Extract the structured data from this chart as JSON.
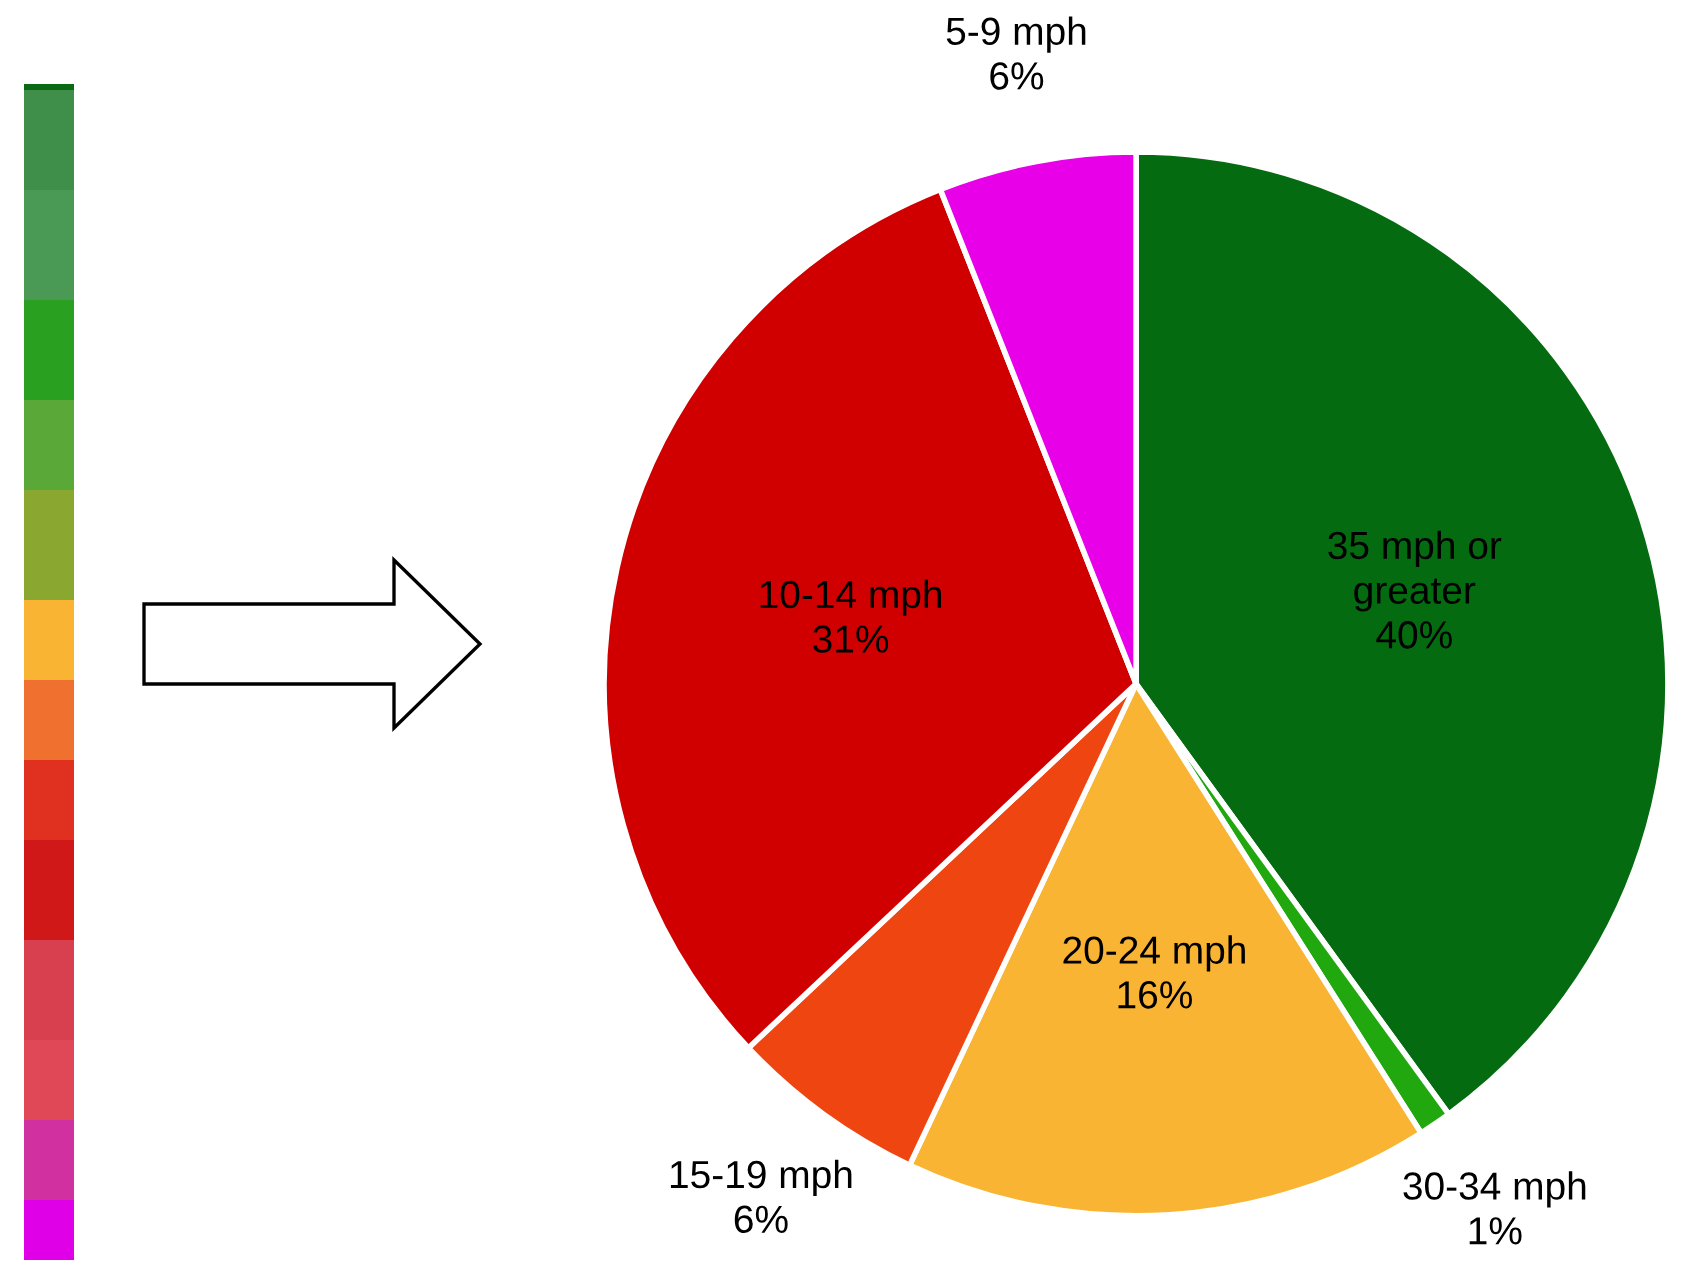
{
  "chart_data": {
    "type": "pie",
    "categories": [
      "35 mph or greater",
      "30-34 mph",
      "20-24 mph",
      "15-19 mph",
      "10-14 mph",
      "5-9 mph"
    ],
    "values": [
      40,
      1,
      16,
      6,
      31,
      6
    ],
    "colors": [
      "#056b10",
      "#22a80f",
      "#f8b432",
      "#ef4510",
      "#d00000",
      "#e800e8"
    ],
    "value_labels": [
      "40%",
      "1%",
      "16%",
      "6%",
      "31%",
      "6%"
    ]
  }
}
